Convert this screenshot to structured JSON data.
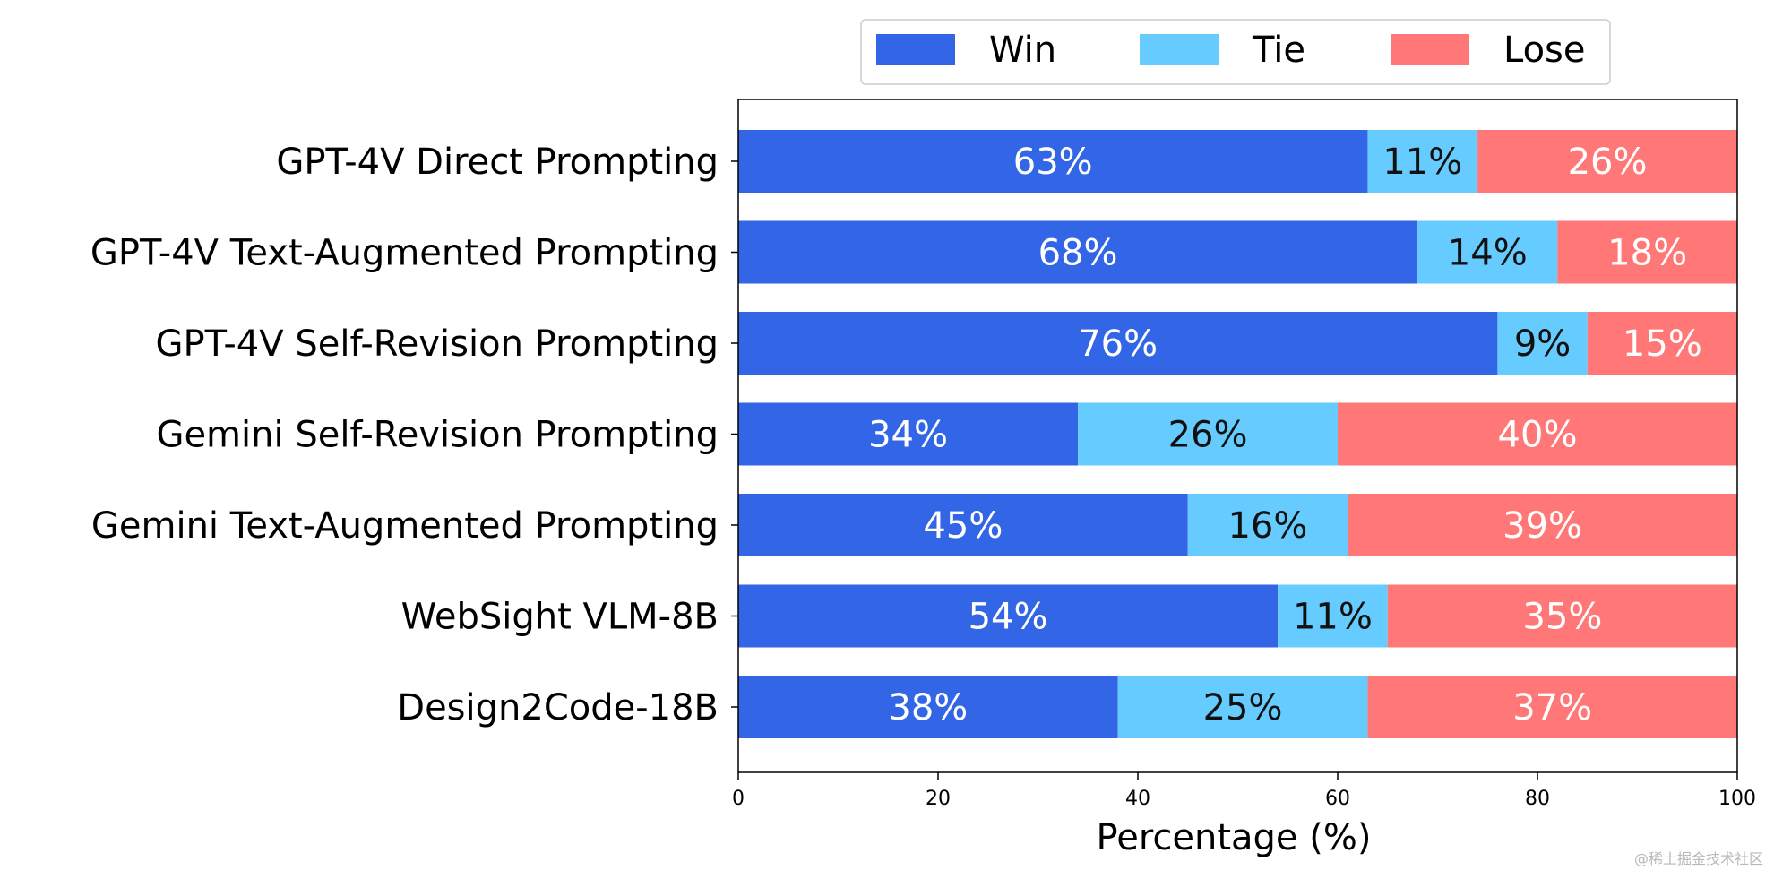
{
  "chart_data": {
    "type": "bar",
    "orientation": "horizontal",
    "stacked": true,
    "title": "",
    "xlabel": "Percentage (%)",
    "ylabel": "",
    "xlim": [
      0,
      100
    ],
    "xticks": [
      0,
      20,
      40,
      60,
      80,
      100
    ],
    "grid": false,
    "legend_position": "top-center",
    "categories": [
      "GPT-4V Direct Prompting",
      "GPT-4V Text-Augmented Prompting",
      "GPT-4V Self-Revision Prompting",
      "Gemini Self-Revision Prompting",
      "Gemini Text-Augmented Prompting",
      "WebSight VLM-8B",
      "Design2Code-18B"
    ],
    "series": [
      {
        "name": "Win",
        "color": "#3366e6",
        "label_color": "#ffffff",
        "values": [
          63,
          68,
          76,
          34,
          45,
          54,
          38
        ]
      },
      {
        "name": "Tie",
        "color": "#66ccff",
        "label_color": "#111111",
        "values": [
          11,
          14,
          9,
          26,
          16,
          11,
          25
        ]
      },
      {
        "name": "Lose",
        "color": "#ff7777",
        "label_color": "#ffffff",
        "values": [
          26,
          18,
          15,
          40,
          39,
          35,
          37
        ]
      }
    ],
    "value_suffix": "%"
  },
  "watermark": "@稀土掘金技术社区"
}
